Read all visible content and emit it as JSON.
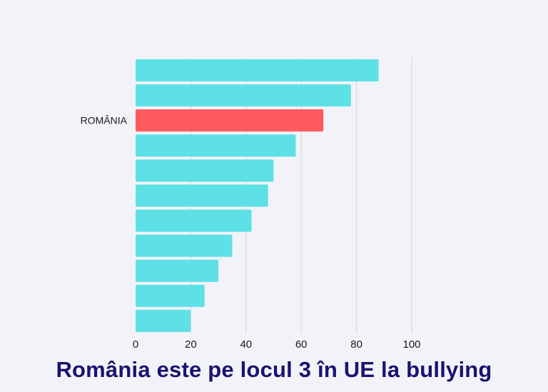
{
  "chart_data": {
    "type": "bar",
    "orientation": "horizontal",
    "title": "România este pe locul 3 în UE la bullying",
    "xlabel": "",
    "ylabel": "",
    "xlim": [
      0,
      100
    ],
    "xticks": [
      0,
      20,
      40,
      60,
      80,
      100
    ],
    "grid": true,
    "categories": [
      "",
      "",
      "ROMÂNIA",
      "",
      "",
      "",
      "",
      "",
      "",
      "",
      ""
    ],
    "values": [
      88,
      78,
      68,
      58,
      50,
      48,
      42,
      35,
      30,
      25,
      20
    ],
    "highlight_index": 2,
    "colors": {
      "default": "#5ee1e6",
      "highlight": "#ff5a5f",
      "grid": "#d4d6de",
      "title": "#1b1270",
      "background": "#f2f3f8"
    }
  }
}
